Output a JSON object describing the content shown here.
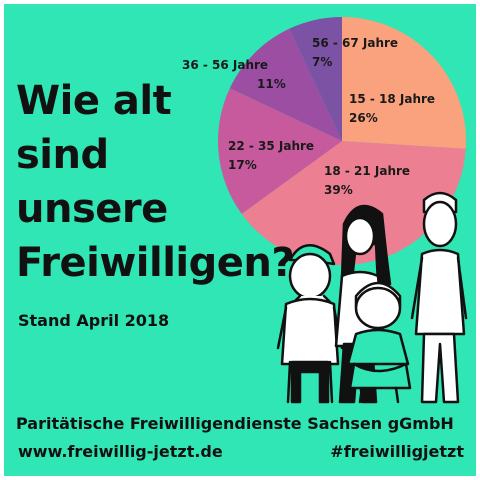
{
  "headline": [
    "Wie alt",
    "sind",
    "unsere",
    "Freiwilligen?"
  ],
  "stand": "Stand April 2018",
  "organization": "Paritätische Freiwilligendienste Sachsen gGmbH",
  "website": "www.freiwillig-jetzt.de",
  "hashtag": "#freiwilligjetzt",
  "colors": {
    "background": "#2fe6b4",
    "accent_pink": "#f07fa0"
  },
  "chart_data": {
    "type": "pie",
    "categories": [
      "15 - 18 Jahre",
      "18 - 21 Jahre",
      "22 - 35 Jahre",
      "36 - 56 Jahre",
      "56 - 67 Jahre"
    ],
    "values": [
      26,
      39,
      17,
      11,
      7
    ],
    "value_labels": [
      "26%",
      "39%",
      "17%",
      "11%",
      "7%"
    ],
    "colors": [
      "#f9a27d",
      "#ec7f91",
      "#c65a9c",
      "#9c4ea3",
      "#7c52a4"
    ],
    "start": "top",
    "direction": "clockwise"
  }
}
